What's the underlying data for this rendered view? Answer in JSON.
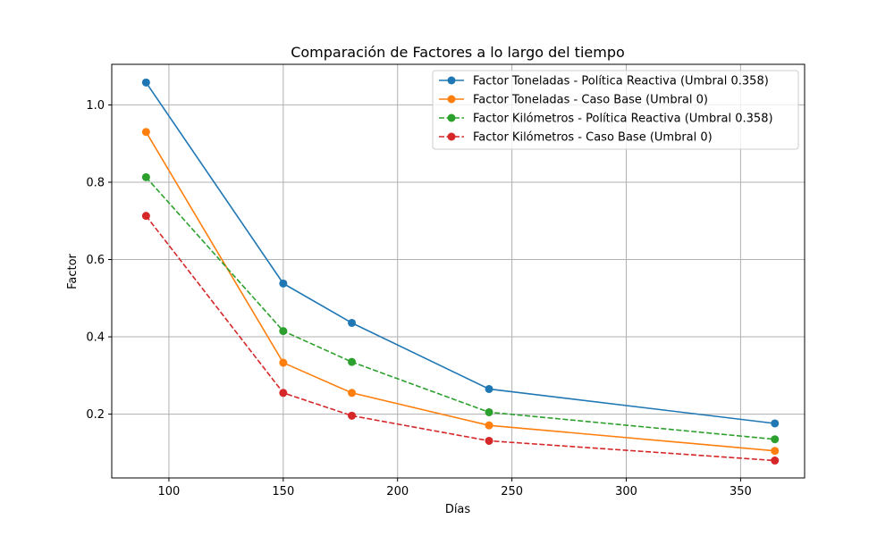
{
  "chart_data": {
    "type": "line",
    "title": "Comparación de Factores a lo largo del tiempo",
    "xlabel": "Días",
    "ylabel": "Factor",
    "xlim": [
      75,
      378
    ],
    "ylim": [
      0.035,
      1.105
    ],
    "xticks": [
      100,
      150,
      200,
      250,
      300,
      350
    ],
    "yticks": [
      0.2,
      0.4,
      0.6,
      0.8,
      1.0
    ],
    "xtick_labels": [
      "100",
      "150",
      "200",
      "250",
      "300",
      "350"
    ],
    "ytick_labels": [
      "0.2",
      "0.4",
      "0.6",
      "0.8",
      "1.0"
    ],
    "grid": true,
    "legend_position": "top-right",
    "x": [
      90,
      150,
      180,
      240,
      365
    ],
    "series": [
      {
        "name": "Factor Toneladas - Política Reactiva (Umbral 0.358)",
        "color": "#1f77b4",
        "dashed": false,
        "values": [
          1.058,
          0.538,
          0.436,
          0.265,
          0.176
        ]
      },
      {
        "name": "Factor Toneladas - Caso Base (Umbral 0)",
        "color": "#ff7f0e",
        "dashed": false,
        "values": [
          0.93,
          0.333,
          0.255,
          0.171,
          0.105
        ]
      },
      {
        "name": "Factor Kilómetros - Política Reactiva (Umbral 0.358)",
        "color": "#2ca02c",
        "dashed": true,
        "values": [
          0.813,
          0.415,
          0.335,
          0.205,
          0.135
        ]
      },
      {
        "name": "Factor Kilómetros - Caso Base (Umbral 0)",
        "color": "#d62728",
        "dashed": true,
        "values": [
          0.713,
          0.255,
          0.196,
          0.131,
          0.08
        ]
      }
    ]
  }
}
